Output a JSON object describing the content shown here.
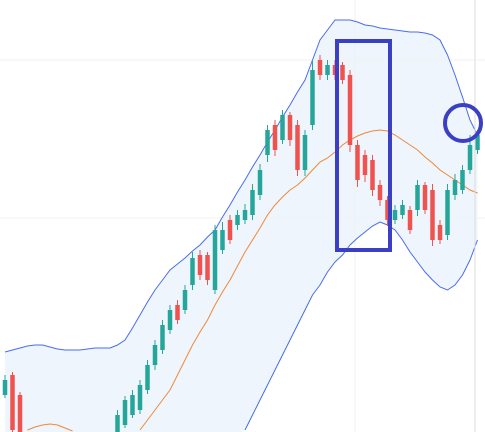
{
  "chart_data": {
    "type": "candlestick",
    "xlim": [
      -0.667,
      64
    ],
    "ylim": [
      0,
      432
    ],
    "up_color": "#26a69a",
    "down_color": "#ef5350",
    "open": [
      37,
      57,
      37,
      null,
      null,
      null,
      null,
      null,
      null,
      null,
      null,
      null,
      null,
      null,
      null,
      0,
      7,
      17,
      22,
      42,
      67,
      82,
      102,
      127,
      122,
      147,
      177,
      177,
      142,
      182,
      212,
      207,
      212,
      217,
      237,
      277,
      307,
      292,
      317,
      307,
      262,
      307,
      372,
      357,
      367,
      367,
      357,
      287,
      277,
      272,
      247,
      232,
      212,
      217,
      222,
      222,
      247,
      242,
      207,
      197,
      237,
      242,
      262,
      282
    ],
    "high": [
      57,
      60,
      40,
      null,
      null,
      null,
      null,
      null,
      null,
      null,
      null,
      null,
      null,
      null,
      null,
      22,
      36,
      42,
      52,
      72,
      92,
      112,
      127,
      132,
      147,
      180,
      182,
      180,
      207,
      210,
      217,
      222,
      228,
      248,
      268,
      307,
      312,
      322,
      320,
      312,
      302,
      372,
      377,
      372,
      372,
      370,
      362,
      292,
      282,
      277,
      252,
      236,
      227,
      232,
      226,
      252,
      250,
      248,
      212,
      248,
      258,
      267,
      297,
      302
    ],
    "low": [
      34,
      0,
      0,
      null,
      null,
      null,
      null,
      null,
      null,
      null,
      null,
      null,
      null,
      null,
      null,
      0,
      4,
      14,
      18,
      38,
      62,
      78,
      98,
      108,
      118,
      142,
      152,
      147,
      138,
      178,
      188,
      202,
      208,
      212,
      232,
      270,
      276,
      288,
      286,
      256,
      256,
      302,
      352,
      352,
      352,
      348,
      280,
      245,
      250,
      236,
      226,
      206,
      208,
      213,
      198,
      216,
      218,
      186,
      188,
      192,
      232,
      238,
      258,
      278
    ],
    "close": [
      52,
      2,
      0,
      null,
      null,
      null,
      null,
      null,
      null,
      null,
      null,
      null,
      null,
      null,
      null,
      17,
      32,
      37,
      47,
      67,
      87,
      107,
      122,
      112,
      142,
      174,
      157,
      152,
      202,
      202,
      192,
      217,
      222,
      242,
      262,
      302,
      282,
      317,
      292,
      262,
      297,
      362,
      357,
      367,
      357,
      352,
      287,
      252,
      257,
      242,
      232,
      212,
      222,
      227,
      202,
      247,
      222,
      192,
      192,
      242,
      252,
      262,
      287,
      297
    ],
    "bands": {
      "color": "#4a6cf0",
      "fill": "#eef5fc",
      "upper": [
        80,
        82,
        84,
        86,
        87,
        87,
        85,
        83,
        82,
        82,
        82,
        83,
        84,
        84,
        84,
        87,
        92,
        104,
        117,
        130,
        142,
        152,
        162,
        168,
        174,
        181,
        187,
        195,
        202,
        215,
        227,
        240,
        252,
        265,
        277,
        290,
        302,
        315,
        327,
        340,
        352,
        372,
        392,
        402,
        412,
        412,
        412,
        410,
        407,
        406,
        404,
        403,
        402,
        401,
        400,
        400,
        399,
        397,
        392,
        377,
        357,
        335,
        312,
        297
      ],
      "lower": [
        null,
        null,
        null,
        null,
        null,
        null,
        null,
        null,
        null,
        null,
        null,
        null,
        null,
        null,
        null,
        null,
        null,
        null,
        null,
        null,
        null,
        null,
        null,
        null,
        null,
        null,
        null,
        null,
        null,
        null,
        null,
        null,
        2,
        17,
        32,
        47,
        62,
        77,
        92,
        107,
        122,
        137,
        147,
        160,
        170,
        177,
        187,
        194,
        200,
        206,
        210,
        207,
        202,
        192,
        180,
        170,
        160,
        152,
        145,
        142,
        147,
        157,
        172,
        192
      ]
    },
    "middle": {
      "color": "#f0883a",
      "values": [
        null,
        null,
        null,
        2,
        5,
        7,
        8,
        7,
        4,
        1,
        null,
        null,
        null,
        null,
        null,
        null,
        null,
        null,
        2,
        12,
        22,
        32,
        42,
        57,
        72,
        87,
        100,
        112,
        127,
        140,
        152,
        166,
        180,
        192,
        204,
        217,
        227,
        235,
        242,
        247,
        254,
        262,
        270,
        274,
        280,
        287,
        292,
        296,
        299,
        301,
        302,
        301,
        297,
        292,
        287,
        282,
        275,
        269,
        262,
        257,
        252,
        247,
        242,
        239
      ]
    }
  }
}
